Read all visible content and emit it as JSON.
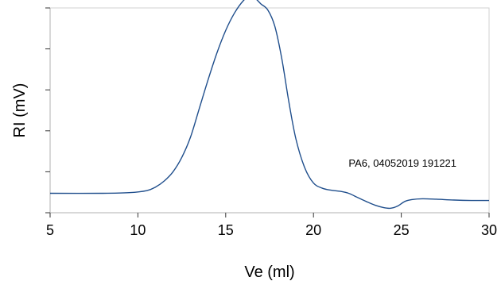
{
  "chart_data": {
    "type": "line",
    "title": "",
    "xlabel": "Ve (ml)",
    "ylabel": "RI (mV)",
    "xlim": [
      5,
      30
    ],
    "ylim": [
      0,
      10
    ],
    "x_ticks": [
      5,
      10,
      15,
      20,
      25,
      30
    ],
    "x_tick_labels": [
      "5",
      "10",
      "15",
      "20",
      "25",
      "30"
    ],
    "y_ticks": [
      0,
      2,
      4,
      6,
      8,
      10
    ],
    "y_tick_labels": [
      "",
      "",
      "",
      "",
      "",
      ""
    ],
    "grid": false,
    "legend": "none",
    "annotation": {
      "text": "PA6, 04052019 191221",
      "x": 22.0,
      "y": 2.25
    },
    "line_color": "#1f4e8c",
    "series": [
      {
        "points": [
          [
            5.0,
            0.95
          ],
          [
            8.0,
            0.95
          ],
          [
            9.5,
            0.98
          ],
          [
            10.5,
            1.08
          ],
          [
            11.0,
            1.25
          ],
          [
            11.5,
            1.55
          ],
          [
            12.0,
            2.0
          ],
          [
            12.5,
            2.7
          ],
          [
            13.0,
            3.7
          ],
          [
            13.5,
            5.1
          ],
          [
            14.0,
            6.5
          ],
          [
            14.5,
            7.8
          ],
          [
            15.0,
            8.9
          ],
          [
            15.5,
            9.75
          ],
          [
            16.0,
            10.35
          ],
          [
            16.35,
            10.55
          ],
          [
            16.7,
            10.45
          ],
          [
            17.0,
            10.2
          ],
          [
            17.4,
            9.9
          ],
          [
            17.8,
            9.1
          ],
          [
            18.2,
            7.5
          ],
          [
            18.6,
            5.4
          ],
          [
            19.0,
            3.6
          ],
          [
            19.5,
            2.2
          ],
          [
            20.0,
            1.45
          ],
          [
            20.5,
            1.2
          ],
          [
            21.0,
            1.1
          ],
          [
            21.5,
            1.05
          ],
          [
            22.0,
            0.95
          ],
          [
            22.5,
            0.75
          ],
          [
            23.0,
            0.55
          ],
          [
            23.5,
            0.37
          ],
          [
            24.0,
            0.25
          ],
          [
            24.4,
            0.22
          ],
          [
            24.8,
            0.33
          ],
          [
            25.2,
            0.55
          ],
          [
            25.6,
            0.64
          ],
          [
            26.2,
            0.68
          ],
          [
            27.0,
            0.66
          ],
          [
            28.0,
            0.62
          ],
          [
            29.0,
            0.6
          ],
          [
            30.0,
            0.6
          ]
        ]
      }
    ]
  }
}
